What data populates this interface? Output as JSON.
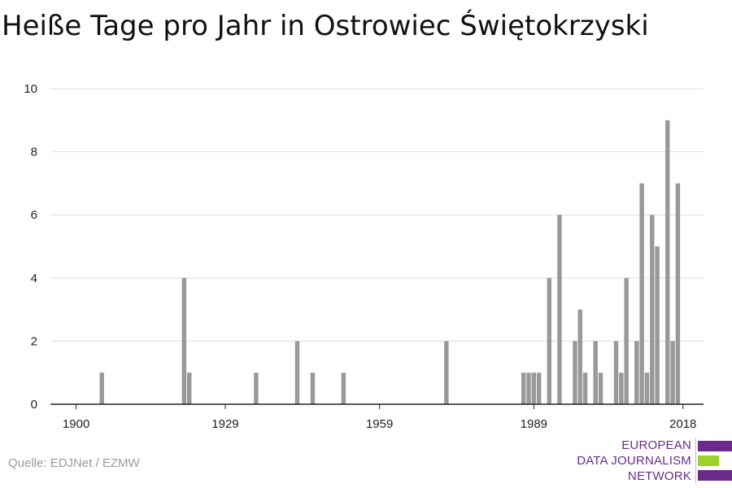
{
  "title": "Heiße Tage pro Jahr in Ostrowiec Świętokrzyski",
  "source": "Quelle: EDJNet / EZMW",
  "logo": {
    "lines": [
      "EUROPEAN",
      "DATA JOURNALISM",
      "NETWORK"
    ],
    "colors": {
      "purple": "#6a2a8c",
      "green": "#9ed12c"
    }
  },
  "chart_data": {
    "type": "bar",
    "title": "Heiße Tage pro Jahr in Ostrowiec Świętokrzyski",
    "xlabel": "",
    "ylabel": "",
    "xlim": [
      1895,
      2022
    ],
    "ylim": [
      0,
      10
    ],
    "x_ticks": [
      1900,
      1929,
      1959,
      1989,
      2018
    ],
    "y_ticks": [
      0,
      2,
      4,
      6,
      8,
      10
    ],
    "grid": true,
    "bar_color": "#999999",
    "x": [
      1905,
      1921,
      1922,
      1935,
      1943,
      1946,
      1952,
      1972,
      1987,
      1988,
      1989,
      1990,
      1992,
      1994,
      1997,
      1998,
      1999,
      2001,
      2002,
      2005,
      2006,
      2007,
      2009,
      2010,
      2011,
      2012,
      2013,
      2015,
      2016,
      2017
    ],
    "values": [
      1,
      4,
      1,
      1,
      2,
      1,
      1,
      2,
      1,
      1,
      1,
      1,
      4,
      6,
      2,
      3,
      1,
      2,
      1,
      2,
      1,
      4,
      2,
      7,
      1,
      6,
      5,
      9,
      2,
      7
    ]
  }
}
